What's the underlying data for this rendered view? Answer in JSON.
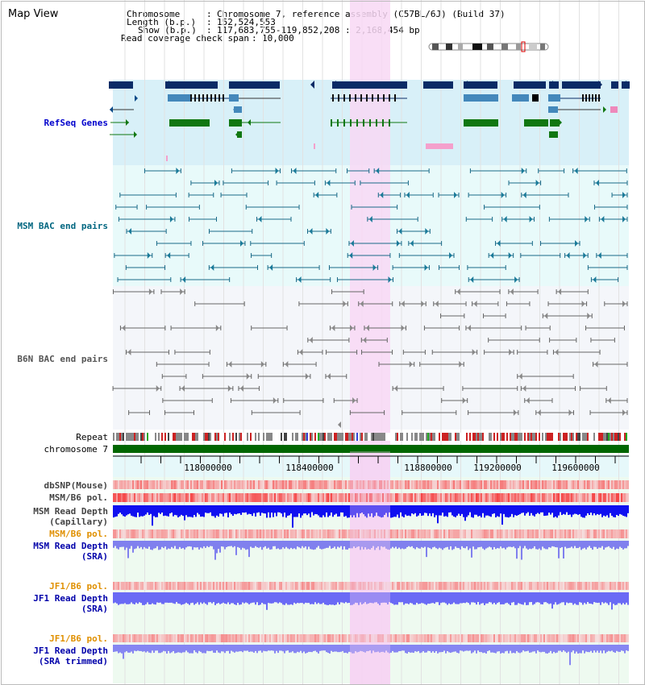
{
  "header": {
    "title": "Map View",
    "chromosome_key": "Chromosome",
    "chromosome_value": "Chromosome 7, reference assembly (C57BL/6J) (Build 37)",
    "length_key": "Length (b.p.)",
    "length_value": "152,524,553",
    "show_key": "Show (b.p.)",
    "show_value": "117,683,755-119,852,208 : 2,168,454 bp",
    "coverage_key": "Read coverage check span",
    "coverage_value": "10,000"
  },
  "tracks": {
    "refseq": "RefSeq Genes",
    "msm_bac": "MSM BAC end pairs",
    "b6n_bac": "B6N BAC end pairs",
    "repeat": "Repeat",
    "chromosome": "chromosome 7",
    "dbsnp": "dbSNP(Mouse)",
    "msm_pol": "MSM/B6 pol.",
    "msm_depth_cap_1": "MSM Read Depth",
    "msm_depth_cap_2": "(Capillary)",
    "msm_pol_sra": "MSM/B6 pol.",
    "msm_depth_sra_1": "MSM Read Depth",
    "msm_depth_sra_2": "(SRA)",
    "jf1_pol_1": "JF1/B6 pol.",
    "jf1_depth_1": "JF1 Read Depth",
    "jf1_depth_1b": "(SRA)",
    "jf1_pol_2": "JF1/B6 pol.",
    "jf1_depth_2": "JF1 Read Depth",
    "jf1_depth_2b": "(SRA trimmed)"
  },
  "ruler": {
    "ticks": [
      "118000000",
      "118400000",
      "118800000",
      "119200000",
      "119600000"
    ]
  },
  "colors": {
    "refseq_label": "#0000cc",
    "msm_label": "#006680",
    "b6n_label": "#555555",
    "sra_label": "#0000aa",
    "pol_label_orange": "#e09000",
    "highlight": "#f8d8f4",
    "refseq_bg": "#d8f0f8",
    "msm_bg": "#e8fafa",
    "b6n_bg": "#f4f6fa",
    "coverage_bg": "#eefaf0",
    "depth_blue": "#0000ff",
    "depth_light": "#7a7af5",
    "chrom_green": "#006600"
  }
}
